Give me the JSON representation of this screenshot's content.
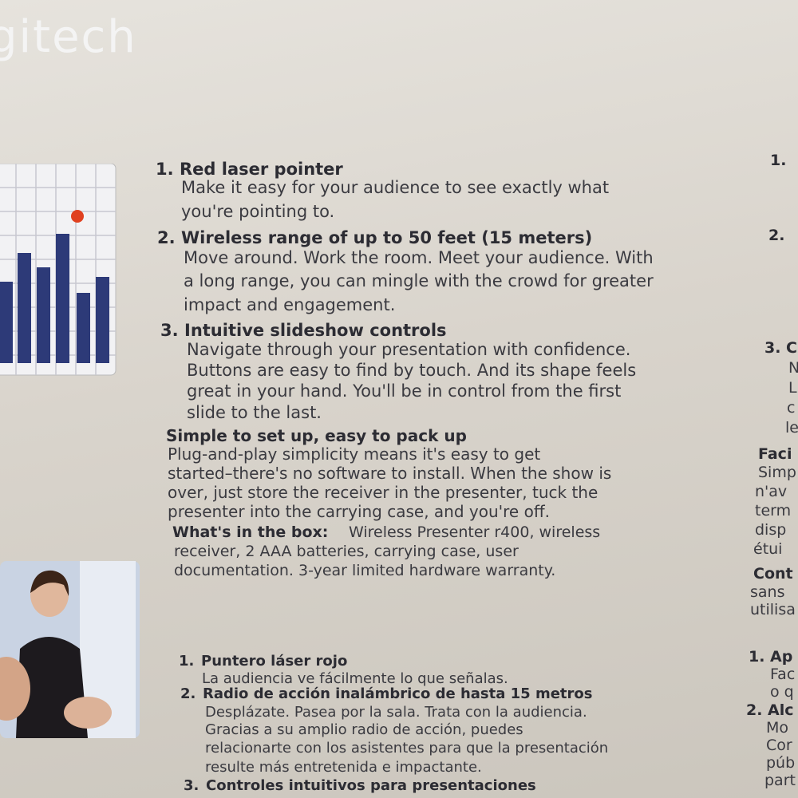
{
  "logo": "gitech",
  "english": {
    "features": [
      {
        "number": "1.",
        "title": "Red laser pointer",
        "lines": [
          "Make it easy for your audience to see exactly what",
          "you're pointing to."
        ]
      },
      {
        "number": "2.",
        "title": "Wireless range of up to 50 feet (15 meters)",
        "lines": [
          "Move around. Work the room. Meet your audience. With",
          "a long range, you can mingle with the crowd for greater",
          "impact and engagement."
        ]
      },
      {
        "number": "3.",
        "title": "Intuitive slideshow controls",
        "lines": [
          "Navigate through your presentation with confidence.",
          "Buttons are easy to find by touch. And its shape feels",
          "great in your hand. You'll be in control from the first",
          "slide to the last."
        ]
      }
    ],
    "setup": {
      "title": "Simple to set up, easy to pack up",
      "lines": [
        "Plug-and-play simplicity means it's easy to get",
        "started–there's no software to install. When the show is",
        "over, just store the receiver in the presenter, tuck the",
        "presenter into the carrying case, and you're off."
      ]
    },
    "box": {
      "label": "What's in the box:",
      "lines": [
        "Wireless Presenter r400, wireless",
        "receiver, 2 AAA batteries, carrying case, user",
        "documentation. 3-year limited hardware warranty."
      ]
    }
  },
  "spanish": {
    "features": [
      {
        "number": "1.",
        "title": "Puntero láser rojo",
        "lines": [
          "La audiencia ve fácilmente lo que señalas."
        ]
      },
      {
        "number": "2.",
        "title": "Radio de acción inalámbrico de hasta 15 metros",
        "lines": [
          "Desplázate. Pasea por la sala. Trata con la audiencia.",
          "Gracias a su amplio radio de acción, puedes",
          "relacionarte con los asistentes para que la presentación",
          "resulte más entretenida e impactante."
        ]
      },
      {
        "number": "3.",
        "title": "Controles intuitivos para presentaciones",
        "lines": []
      }
    ]
  },
  "french_fragments": [
    "1.",
    "2.",
    "3. C",
    "N",
    "L",
    "c",
    "le",
    "Faci",
    "Simp",
    "n'av",
    "term",
    "disp",
    "étui",
    "Cont",
    "sans",
    "utilisa",
    "1. Ap",
    "Fac",
    "o q",
    "2. Alc",
    "Mo",
    "Cor",
    "púb",
    "part"
  ]
}
